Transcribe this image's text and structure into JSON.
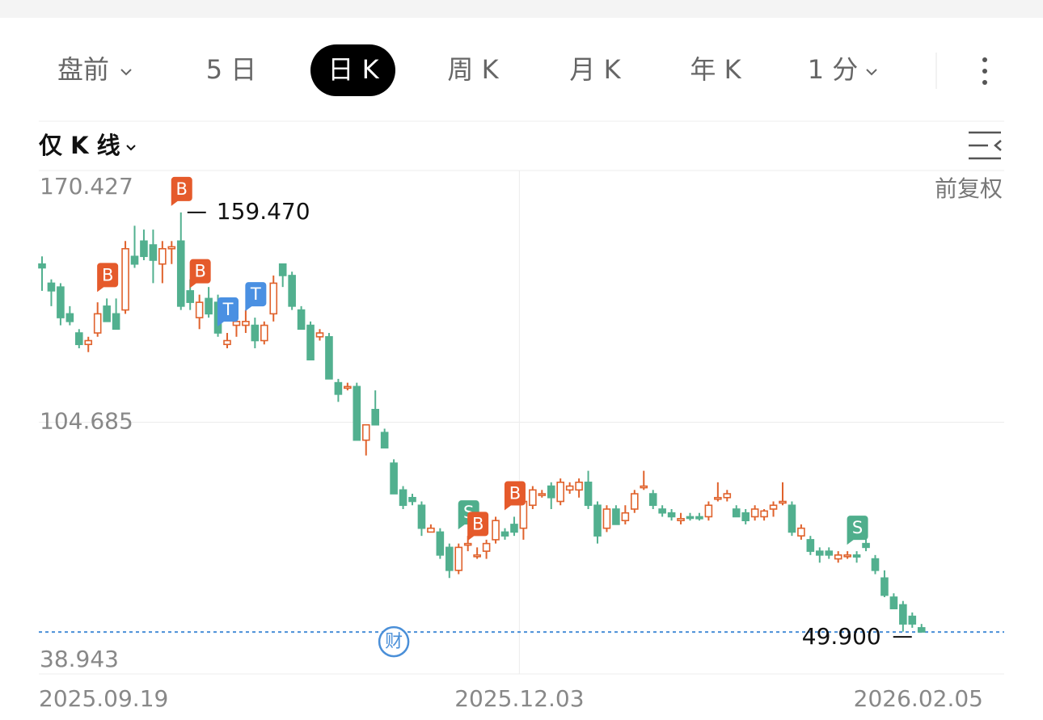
{
  "tabs": [
    "盘前",
    "5 日",
    "日 K",
    "周 K",
    "月 K",
    "年 K",
    "1 分"
  ],
  "selected_tab": 2,
  "chart_mode": "仅 K 线",
  "adjust_label": "前复权",
  "chart_data": {
    "type": "candlestick",
    "categories": [
      "2025.09.19",
      null,
      null,
      null,
      null,
      null,
      null,
      null,
      null,
      null,
      null,
      null,
      null,
      null,
      null,
      null,
      null,
      null,
      null,
      null,
      null,
      null,
      null,
      null,
      null,
      null,
      null,
      null,
      null,
      null,
      null,
      null,
      null,
      null,
      null,
      null,
      null,
      null,
      null,
      null,
      null,
      null,
      null,
      null,
      null,
      null,
      null,
      null,
      null,
      null,
      null,
      null,
      "2025.12.03",
      null,
      null,
      null,
      null,
      null,
      null,
      null,
      null,
      null,
      null,
      null,
      null,
      null,
      null,
      null,
      null,
      null,
      null,
      null,
      null,
      null,
      null,
      null,
      null,
      null,
      null,
      null,
      null,
      null,
      null,
      null,
      null,
      null,
      null,
      null,
      null,
      null,
      null,
      null,
      null,
      null,
      null,
      "2026.02.05"
    ],
    "open": [
      146,
      141,
      140,
      133,
      128,
      125,
      128,
      135,
      133,
      134,
      148,
      152,
      151,
      146,
      150,
      152,
      139,
      132,
      137,
      136,
      125,
      130,
      130,
      130,
      126,
      133,
      146,
      143,
      134,
      130,
      127,
      127,
      115,
      114,
      114,
      100,
      108,
      102,
      94,
      87,
      85,
      83,
      76,
      76,
      72,
      66,
      73,
      70,
      71,
      74,
      76,
      78,
      77,
      83,
      86,
      88,
      84,
      87,
      87,
      89,
      83,
      77,
      82,
      79,
      82,
      88,
      86,
      82,
      81,
      79,
      80,
      80,
      80,
      85,
      85,
      82,
      81,
      80,
      80,
      82,
      84,
      83,
      75,
      74,
      71,
      71,
      69,
      70,
      70,
      73,
      69,
      64,
      59,
      57,
      54,
      51
    ],
    "high": [
      148,
      142,
      141,
      135,
      129,
      127,
      136,
      137,
      137,
      152,
      156,
      155,
      155,
      152,
      152,
      159.47,
      142,
      138,
      140,
      138,
      128,
      135,
      134,
      132,
      131,
      143,
      146,
      144,
      135,
      131,
      129,
      128,
      116,
      115,
      115,
      104,
      113,
      103,
      95,
      88,
      86,
      84,
      78,
      77,
      73,
      73,
      75,
      72,
      74,
      80,
      77,
      80,
      85,
      88,
      87,
      89,
      90,
      89,
      90,
      92,
      84,
      83,
      83,
      83,
      87,
      92,
      87,
      83,
      82,
      81,
      81,
      81,
      84,
      89,
      87,
      83,
      82,
      83,
      82,
      84,
      89,
      84,
      78,
      75,
      72,
      72,
      71,
      71,
      71,
      75,
      70,
      66,
      60,
      58,
      55,
      52
    ],
    "low": [
      139,
      135,
      130,
      130,
      124,
      123,
      127,
      131,
      129,
      133,
      145,
      147,
      141,
      141,
      146,
      134,
      134,
      129,
      132,
      127,
      124,
      127,
      128,
      124,
      125,
      131,
      140,
      134,
      129,
      121,
      126,
      116,
      110,
      113,
      100,
      96,
      104,
      98,
      86,
      82,
      83,
      75,
      76,
      69,
      64,
      65,
      71,
      69,
      69,
      73,
      74,
      75,
      74,
      82,
      85,
      82,
      83,
      86,
      85,
      82,
      73,
      76,
      78,
      78,
      81,
      87,
      82,
      80,
      79,
      78,
      79,
      79,
      79,
      84,
      84,
      80,
      78,
      79,
      79,
      80,
      83,
      75,
      74,
      70,
      68,
      69,
      68,
      69,
      68,
      71,
      65,
      59,
      56,
      50,
      51,
      49.9
    ],
    "close": [
      145,
      139,
      132,
      131,
      125,
      126,
      133,
      131,
      129,
      150,
      146,
      148,
      147,
      150,
      150.5,
      135,
      136,
      136,
      133,
      128,
      126,
      131,
      131,
      126,
      130,
      141,
      143,
      135,
      129,
      121,
      128,
      116,
      112,
      114,
      100,
      104,
      104,
      98,
      86,
      83,
      84,
      77,
      77,
      70,
      66,
      72,
      73,
      70,
      73,
      79,
      75,
      76,
      84,
      87,
      86,
      85,
      89,
      88,
      89,
      83,
      75,
      82,
      78,
      81,
      86,
      88,
      83,
      81,
      80,
      79.5,
      79.7,
      79.5,
      83,
      85,
      86,
      80,
      79,
      82,
      81.5,
      83,
      84,
      76,
      77,
      71,
      70,
      70,
      70,
      70,
      69.5,
      72,
      66,
      59.5,
      56,
      52,
      52,
      49.9
    ],
    "up_color": "#e0622c",
    "down_color": "#52b08f",
    "ylim": [
      38.943,
      170.427
    ],
    "yticks": [
      170.427,
      104.685,
      38.943
    ],
    "grid": true,
    "annotations": [
      {
        "index": 15,
        "value": 159.47,
        "label": "159.470"
      },
      {
        "index": 95,
        "value": 49.9,
        "label": "49.900"
      }
    ],
    "markers": [
      {
        "label": "B",
        "index": 7
      },
      {
        "label": "B",
        "index": 15
      },
      {
        "label": "B",
        "index": 17
      },
      {
        "label": "T",
        "index": 20
      },
      {
        "label": "T",
        "index": 23
      },
      {
        "label": "S",
        "index": 46
      },
      {
        "label": "B",
        "index": 47
      },
      {
        "label": "B",
        "index": 51
      },
      {
        "label": "S",
        "index": 88
      }
    ],
    "marker_colors": {
      "B": "#e55a2b",
      "T": "#4a90e2",
      "S": "#4fae8c"
    },
    "event_badge": {
      "label": "财",
      "index": 38,
      "color": "#4a8fd8"
    }
  }
}
